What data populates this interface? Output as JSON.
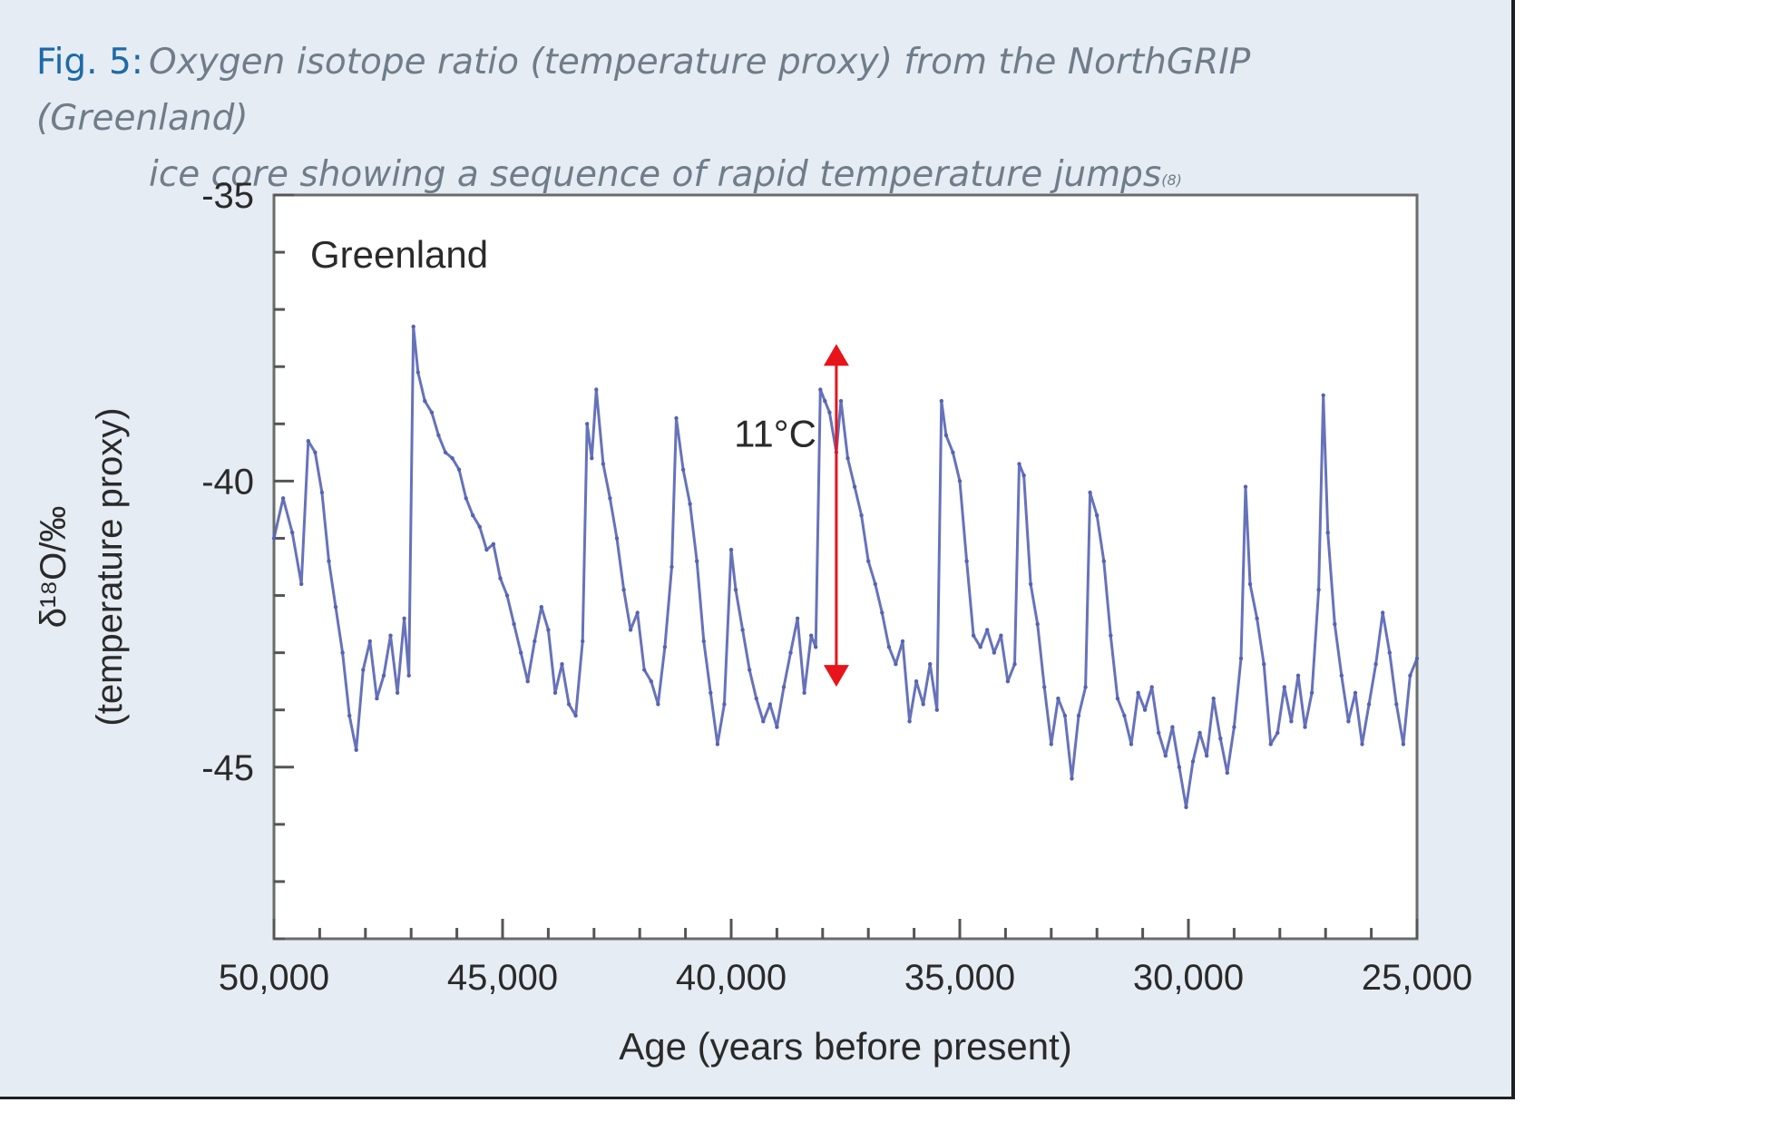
{
  "figure": {
    "label": "Fig. 5:",
    "caption_line1": "Oxygen isotope ratio (temperature proxy) from the NorthGRIP (Greenland)",
    "caption_line2": "ice core showing a sequence of rapid temperature jumps",
    "footnote": "(8)"
  },
  "chart_data": {
    "type": "line",
    "inset_label": "Greenland",
    "xlabel": "Age (years before present)",
    "ylabel_line1": "δ¹⁸O/‰",
    "ylabel_line2": "(temperature proxy)",
    "xlim": [
      50000,
      25000
    ],
    "ylim": [
      -48,
      -35
    ],
    "x_ticks": [
      50000,
      45000,
      40000,
      35000,
      30000,
      25000
    ],
    "x_tick_labels": [
      "50,000",
      "45,000",
      "40,000",
      "35,000",
      "30,000",
      "25,000"
    ],
    "y_ticks": [
      -35,
      -40,
      -45
    ],
    "y_tick_labels": [
      "-35",
      "-40",
      "-45"
    ],
    "grid": false,
    "line_color": "#5563b2",
    "annotation": {
      "text": "11°C",
      "x": 37700,
      "y_top": -37.7,
      "y_bottom": -43.5,
      "color": "#e8141b"
    },
    "series": [
      {
        "values": [
          [
            50000,
            -41.0
          ],
          [
            49800,
            -40.3
          ],
          [
            49600,
            -40.9
          ],
          [
            49400,
            -41.8
          ],
          [
            49250,
            -39.3
          ],
          [
            49100,
            -39.5
          ],
          [
            48950,
            -40.2
          ],
          [
            48800,
            -41.4
          ],
          [
            48650,
            -42.2
          ],
          [
            48500,
            -43.0
          ],
          [
            48350,
            -44.1
          ],
          [
            48200,
            -44.7
          ],
          [
            48050,
            -43.3
          ],
          [
            47900,
            -42.8
          ],
          [
            47750,
            -43.8
          ],
          [
            47600,
            -43.4
          ],
          [
            47450,
            -42.7
          ],
          [
            47300,
            -43.7
          ],
          [
            47150,
            -42.4
          ],
          [
            47050,
            -43.4
          ],
          [
            46950,
            -37.3
          ],
          [
            46850,
            -38.1
          ],
          [
            46700,
            -38.6
          ],
          [
            46550,
            -38.8
          ],
          [
            46400,
            -39.2
          ],
          [
            46250,
            -39.5
          ],
          [
            46100,
            -39.6
          ],
          [
            45950,
            -39.8
          ],
          [
            45800,
            -40.3
          ],
          [
            45650,
            -40.6
          ],
          [
            45500,
            -40.8
          ],
          [
            45350,
            -41.2
          ],
          [
            45200,
            -41.1
          ],
          [
            45050,
            -41.7
          ],
          [
            44900,
            -42.0
          ],
          [
            44750,
            -42.5
          ],
          [
            44600,
            -43.0
          ],
          [
            44450,
            -43.5
          ],
          [
            44300,
            -42.8
          ],
          [
            44150,
            -42.2
          ],
          [
            44000,
            -42.6
          ],
          [
            43850,
            -43.7
          ],
          [
            43700,
            -43.2
          ],
          [
            43550,
            -43.9
          ],
          [
            43400,
            -44.1
          ],
          [
            43250,
            -42.8
          ],
          [
            43150,
            -39.0
          ],
          [
            43050,
            -39.6
          ],
          [
            42950,
            -38.4
          ],
          [
            42800,
            -39.7
          ],
          [
            42650,
            -40.3
          ],
          [
            42500,
            -41.0
          ],
          [
            42350,
            -41.9
          ],
          [
            42200,
            -42.6
          ],
          [
            42050,
            -42.3
          ],
          [
            41900,
            -43.3
          ],
          [
            41750,
            -43.5
          ],
          [
            41600,
            -43.9
          ],
          [
            41450,
            -42.9
          ],
          [
            41300,
            -41.5
          ],
          [
            41200,
            -38.9
          ],
          [
            41050,
            -39.8
          ],
          [
            40900,
            -40.4
          ],
          [
            40750,
            -41.4
          ],
          [
            40600,
            -42.8
          ],
          [
            40450,
            -43.7
          ],
          [
            40300,
            -44.6
          ],
          [
            40150,
            -43.9
          ],
          [
            40000,
            -41.2
          ],
          [
            39900,
            -41.9
          ],
          [
            39750,
            -42.6
          ],
          [
            39600,
            -43.3
          ],
          [
            39450,
            -43.8
          ],
          [
            39300,
            -44.2
          ],
          [
            39150,
            -43.9
          ],
          [
            39000,
            -44.3
          ],
          [
            38850,
            -43.6
          ],
          [
            38700,
            -43.0
          ],
          [
            38550,
            -42.4
          ],
          [
            38400,
            -43.7
          ],
          [
            38250,
            -42.7
          ],
          [
            38150,
            -42.9
          ],
          [
            38050,
            -38.4
          ],
          [
            37950,
            -38.6
          ],
          [
            37850,
            -38.8
          ],
          [
            37700,
            -39.5
          ],
          [
            37600,
            -38.6
          ],
          [
            37450,
            -39.6
          ],
          [
            37300,
            -40.1
          ],
          [
            37150,
            -40.6
          ],
          [
            37000,
            -41.4
          ],
          [
            36850,
            -41.8
          ],
          [
            36700,
            -42.3
          ],
          [
            36550,
            -42.9
          ],
          [
            36400,
            -43.2
          ],
          [
            36250,
            -42.8
          ],
          [
            36100,
            -44.2
          ],
          [
            35950,
            -43.5
          ],
          [
            35800,
            -43.9
          ],
          [
            35650,
            -43.2
          ],
          [
            35500,
            -44.0
          ],
          [
            35400,
            -38.6
          ],
          [
            35300,
            -39.2
          ],
          [
            35150,
            -39.5
          ],
          [
            35000,
            -40.0
          ],
          [
            34850,
            -41.4
          ],
          [
            34700,
            -42.7
          ],
          [
            34550,
            -42.9
          ],
          [
            34400,
            -42.6
          ],
          [
            34250,
            -43.0
          ],
          [
            34100,
            -42.7
          ],
          [
            33950,
            -43.5
          ],
          [
            33800,
            -43.2
          ],
          [
            33700,
            -39.7
          ],
          [
            33600,
            -39.9
          ],
          [
            33450,
            -41.8
          ],
          [
            33300,
            -42.5
          ],
          [
            33150,
            -43.6
          ],
          [
            33000,
            -44.6
          ],
          [
            32850,
            -43.8
          ],
          [
            32700,
            -44.1
          ],
          [
            32550,
            -45.2
          ],
          [
            32400,
            -44.1
          ],
          [
            32250,
            -43.6
          ],
          [
            32150,
            -40.2
          ],
          [
            32000,
            -40.6
          ],
          [
            31850,
            -41.4
          ],
          [
            31700,
            -42.7
          ],
          [
            31550,
            -43.8
          ],
          [
            31400,
            -44.1
          ],
          [
            31250,
            -44.6
          ],
          [
            31100,
            -43.7
          ],
          [
            30950,
            -44.0
          ],
          [
            30800,
            -43.6
          ],
          [
            30650,
            -44.4
          ],
          [
            30500,
            -44.8
          ],
          [
            30350,
            -44.3
          ],
          [
            30200,
            -45.0
          ],
          [
            30050,
            -45.7
          ],
          [
            29900,
            -44.9
          ],
          [
            29750,
            -44.4
          ],
          [
            29600,
            -44.8
          ],
          [
            29450,
            -43.8
          ],
          [
            29300,
            -44.5
          ],
          [
            29150,
            -45.1
          ],
          [
            29000,
            -44.3
          ],
          [
            28850,
            -43.1
          ],
          [
            28750,
            -40.1
          ],
          [
            28650,
            -41.8
          ],
          [
            28500,
            -42.4
          ],
          [
            28350,
            -43.2
          ],
          [
            28200,
            -44.6
          ],
          [
            28050,
            -44.4
          ],
          [
            27900,
            -43.6
          ],
          [
            27750,
            -44.2
          ],
          [
            27600,
            -43.4
          ],
          [
            27450,
            -44.3
          ],
          [
            27300,
            -43.7
          ],
          [
            27150,
            -41.9
          ],
          [
            27050,
            -38.5
          ],
          [
            26950,
            -40.9
          ],
          [
            26800,
            -42.5
          ],
          [
            26650,
            -43.4
          ],
          [
            26500,
            -44.2
          ],
          [
            26350,
            -43.7
          ],
          [
            26200,
            -44.6
          ],
          [
            26050,
            -43.9
          ],
          [
            25900,
            -43.2
          ],
          [
            25750,
            -42.3
          ],
          [
            25600,
            -43.0
          ],
          [
            25450,
            -43.9
          ],
          [
            25300,
            -44.6
          ],
          [
            25150,
            -43.4
          ],
          [
            25000,
            -43.1
          ]
        ]
      }
    ]
  }
}
